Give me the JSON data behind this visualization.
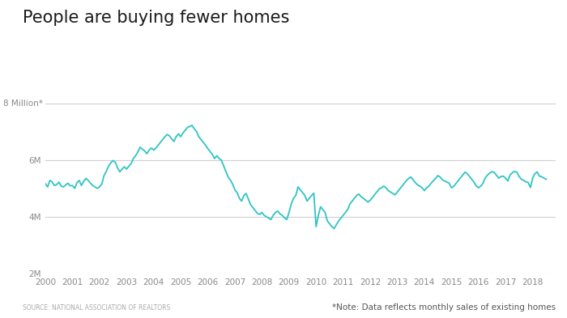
{
  "title": "People are buying fewer homes",
  "line_color": "#2EC4C4",
  "background_color": "#ffffff",
  "source_left": "SOURCE: NATIONAL ASSOCIATION OF REALTORS",
  "source_right": "*Note: Data reflects monthly sales of existing homes",
  "ylabel_8m": "8 Million*",
  "ylim": [
    2000000,
    8500000
  ],
  "yticks": [
    2000000,
    4000000,
    6000000,
    8000000
  ],
  "ytick_labels_lower": [
    "2M",
    "4M",
    "6M"
  ],
  "grid_color": "#d0d0d0",
  "monthly_data": [
    5170000,
    5050000,
    5280000,
    5230000,
    5100000,
    5130000,
    5220000,
    5080000,
    5050000,
    5120000,
    5180000,
    5090000,
    5100000,
    5000000,
    5200000,
    5280000,
    5100000,
    5250000,
    5350000,
    5280000,
    5180000,
    5100000,
    5050000,
    5000000,
    5050000,
    5150000,
    5450000,
    5600000,
    5780000,
    5900000,
    5980000,
    5920000,
    5720000,
    5580000,
    5680000,
    5760000,
    5680000,
    5780000,
    5870000,
    6050000,
    6150000,
    6280000,
    6450000,
    6380000,
    6320000,
    6220000,
    6350000,
    6420000,
    6350000,
    6420000,
    6520000,
    6620000,
    6720000,
    6820000,
    6900000,
    6850000,
    6750000,
    6650000,
    6820000,
    6920000,
    6820000,
    6950000,
    7050000,
    7150000,
    7180000,
    7220000,
    7100000,
    7000000,
    6820000,
    6720000,
    6620000,
    6520000,
    6400000,
    6300000,
    6200000,
    6050000,
    6150000,
    6050000,
    6000000,
    5800000,
    5600000,
    5400000,
    5300000,
    5150000,
    4950000,
    4850000,
    4650000,
    4550000,
    4750000,
    4820000,
    4620000,
    4420000,
    4320000,
    4220000,
    4120000,
    4080000,
    4150000,
    4050000,
    4000000,
    3950000,
    3900000,
    4050000,
    4150000,
    4200000,
    4100000,
    4050000,
    3960000,
    3900000,
    4150000,
    4450000,
    4650000,
    4750000,
    5050000,
    4950000,
    4850000,
    4750000,
    4550000,
    4650000,
    4750000,
    4830000,
    3650000,
    4050000,
    4350000,
    4250000,
    4150000,
    3850000,
    3750000,
    3650000,
    3580000,
    3720000,
    3850000,
    3950000,
    4050000,
    4150000,
    4250000,
    4450000,
    4550000,
    4650000,
    4750000,
    4800000,
    4700000,
    4650000,
    4580000,
    4520000,
    4580000,
    4680000,
    4780000,
    4880000,
    4980000,
    5020000,
    5080000,
    5020000,
    4920000,
    4870000,
    4820000,
    4770000,
    4870000,
    4970000,
    5070000,
    5170000,
    5270000,
    5350000,
    5400000,
    5300000,
    5200000,
    5120000,
    5080000,
    5020000,
    4920000,
    5020000,
    5080000,
    5180000,
    5270000,
    5350000,
    5450000,
    5400000,
    5300000,
    5260000,
    5220000,
    5180000,
    5020000,
    5070000,
    5170000,
    5270000,
    5370000,
    5470000,
    5570000,
    5520000,
    5420000,
    5320000,
    5220000,
    5080000,
    5020000,
    5080000,
    5180000,
    5370000,
    5470000,
    5540000,
    5590000,
    5560000,
    5460000,
    5360000,
    5420000,
    5430000,
    5360000,
    5260000,
    5470000,
    5550000,
    5600000,
    5570000,
    5420000,
    5320000,
    5280000,
    5230000,
    5210000,
    5030000,
    5360000,
    5520000,
    5580000,
    5430000,
    5410000,
    5360000,
    5320000
  ],
  "start_year": 2000,
  "line_width": 1.3
}
